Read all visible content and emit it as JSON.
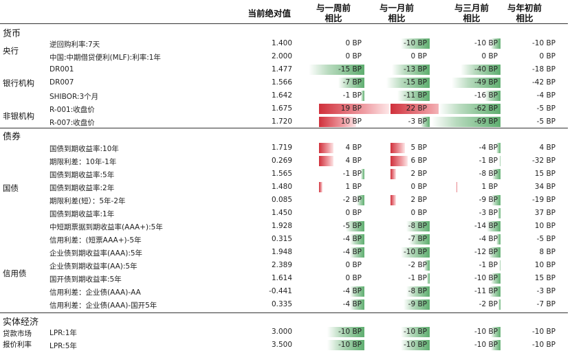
{
  "headers": {
    "abs": "当前绝对值",
    "w1_line1": "与一周前",
    "w1_line2": "相比",
    "m1_line1": "与一月前",
    "m1_line2": "相比",
    "m3_line1": "与三月前",
    "m3_line2": "相比",
    "ytd_line1": "与年初前",
    "ytd_line2": "相比"
  },
  "unit": "BP",
  "sections": [
    {
      "label": "货币"
    },
    {
      "label": "债券"
    },
    {
      "label": "实体经济"
    }
  ],
  "groups": [
    {
      "label": "央行"
    },
    {
      "label": "银行机构"
    },
    {
      "label": "非银机构"
    },
    {
      "label": "国债"
    },
    {
      "label": "信用债"
    },
    {
      "label": "贷款市场"
    },
    {
      "label": "报价利率"
    }
  ],
  "rows": [
    {
      "name": "逆回购利率:7天",
      "value": "1.400",
      "w1": 0,
      "m1": -10,
      "m3": -10,
      "ytd": -10
    },
    {
      "name": "中国:中期借贷便利(MLF):利率:1年",
      "value": "2.000",
      "w1": 0,
      "m1": 0,
      "m3": 0,
      "ytd": 0
    },
    {
      "name": "DR001",
      "value": "1.477",
      "w1": -15,
      "m1": -13,
      "m3": -40,
      "ytd": -18
    },
    {
      "name": "DR007",
      "value": "1.566",
      "w1": -7,
      "m1": -15,
      "m3": -49,
      "ytd": -42
    },
    {
      "name": "SHIBOR:3个月",
      "value": "1.642",
      "w1": -1,
      "m1": -11,
      "m3": -16,
      "ytd": -4
    },
    {
      "name": "R-001:收盘价",
      "value": "1.675",
      "w1": 19,
      "m1": 22,
      "m3": -62,
      "ytd": -5
    },
    {
      "name": "R-007:收盘价",
      "value": "1.720",
      "w1": 10,
      "m1": -3,
      "m3": -69,
      "ytd": -5
    },
    {
      "name": "国债到期收益率:10年",
      "value": "1.719",
      "w1": 4,
      "m1": 5,
      "m3": -4,
      "ytd": 4
    },
    {
      "name": "期限利差：10年-1年",
      "value": "0.269",
      "w1": 4,
      "m1": 6,
      "m3": -1,
      "ytd": -32
    },
    {
      "name": "国债到期收益率:5年",
      "value": "1.565",
      "w1": -1,
      "m1": 2,
      "m3": -8,
      "ytd": 15
    },
    {
      "name": "国债到期收益率:2年",
      "value": "1.480",
      "w1": 1,
      "m1": 0,
      "m3": 1,
      "ytd": 34
    },
    {
      "name": "期限利差(短）：5年-2年",
      "value": "0.085",
      "w1": -2,
      "m1": 2,
      "m3": -9,
      "ytd": -19
    },
    {
      "name": "国债到期收益率:1年",
      "value": "1.450",
      "w1": 0,
      "m1": 0,
      "m3": -3,
      "ytd": 37
    },
    {
      "name": "中短期票据到期收益率(AAA+):5年",
      "value": "1.928",
      "w1": -5,
      "m1": -8,
      "m3": -14,
      "ytd": 10
    },
    {
      "name": "信用利差：(短票AAA+)-5年",
      "value": "0.315",
      "w1": -4,
      "m1": -7,
      "m3": -4,
      "ytd": -5
    },
    {
      "name": "企业债到期收益率(AAA):5年",
      "value": "1.948",
      "w1": -4,
      "m1": -10,
      "m3": -12,
      "ytd": 8
    },
    {
      "name": "企业债到期收益率(AA):5年",
      "value": "2.389",
      "w1": 0,
      "m1": -2,
      "m3": -1,
      "ytd": 10
    },
    {
      "name": "国开债到期收益率:5年",
      "value": "1.614",
      "w1": 0,
      "m1": -1,
      "m3": -10,
      "ytd": 15
    },
    {
      "name": "信用利差：企业债(AAA)-AA",
      "value": "-0.441",
      "w1": -4,
      "m1": -8,
      "m3": -11,
      "ytd": -3
    },
    {
      "name": "信用利差：企业债(AAA)-国开5年",
      "value": "0.335",
      "w1": -4,
      "m1": -9,
      "m3": -2,
      "ytd": -7
    },
    {
      "name": "LPR:1年",
      "value": "3.000",
      "w1": -10,
      "m1": -10,
      "m3": -10,
      "ytd": -10
    },
    {
      "name": "LPR:5年",
      "value": "3.500",
      "w1": -10,
      "m1": -10,
      "m3": -10,
      "ytd": -10
    }
  ]
}
